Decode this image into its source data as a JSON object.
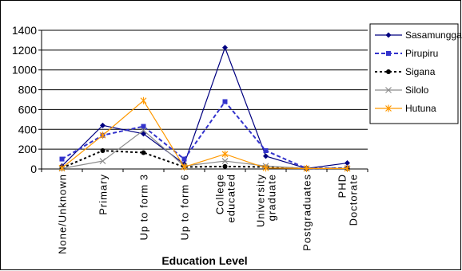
{
  "chart_data": {
    "type": "line",
    "title": "",
    "xlabel": "Education Level",
    "ylabel": "",
    "ylim": [
      0,
      1400
    ],
    "yticks": [
      0,
      200,
      400,
      600,
      800,
      1000,
      1200,
      1400
    ],
    "grid": "horizontal",
    "legend_position": "right",
    "categories": [
      [
        "None/Unknown"
      ],
      [
        "Primary"
      ],
      [
        "Up to form 3"
      ],
      [
        "Up to form 6"
      ],
      [
        "College",
        "educated"
      ],
      [
        "University",
        "graduate"
      ],
      [
        "Postgraduates"
      ],
      [
        "PHD",
        "Doctorate"
      ]
    ],
    "series": [
      {
        "name": "Sasamungga",
        "color": "#000080",
        "dash": "",
        "marker": "diamond",
        "values": [
          30,
          440,
          355,
          50,
          1225,
          130,
          5,
          60
        ]
      },
      {
        "name": "Pirupiru",
        "color": "#3333cc",
        "dash": "5,3",
        "marker": "square",
        "values": [
          100,
          340,
          430,
          100,
          680,
          185,
          5,
          10
        ]
      },
      {
        "name": "Sigana",
        "color": "#000000",
        "dash": "3,3",
        "marker": "circle",
        "values": [
          10,
          185,
          165,
          20,
          25,
          20,
          5,
          5
        ]
      },
      {
        "name": "Silolo",
        "color": "#8c8c8c",
        "dash": "",
        "marker": "x",
        "values": [
          5,
          80,
          390,
          30,
          80,
          30,
          5,
          5
        ]
      },
      {
        "name": "Hutuna",
        "color": "#ff9900",
        "dash": "",
        "marker": "star",
        "values": [
          10,
          340,
          690,
          20,
          150,
          10,
          5,
          5
        ]
      }
    ]
  }
}
